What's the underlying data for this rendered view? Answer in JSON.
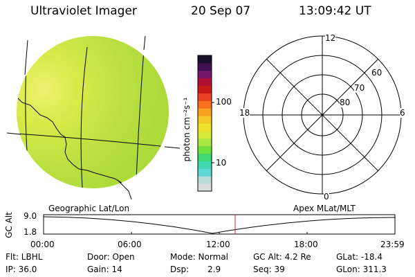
{
  "header": {
    "title": "Ultraviolet Imager",
    "date": "20 Sep 07",
    "time": "13:09:42 UT"
  },
  "colorbar": {
    "unit_label": "photon cm⁻²s⁻¹",
    "tick_high": "100",
    "tick_low": "10",
    "colors": [
      "#d8dcdc",
      "#b8dcdc",
      "#60d8d8",
      "#40d8b0",
      "#40d870",
      "#70e040",
      "#a8e840",
      "#d8e838",
      "#f0e030",
      "#f8c828",
      "#f8a020",
      "#f87020",
      "#e84020",
      "#c81818",
      "#b01030",
      "#781868",
      "#401050",
      "#18102a"
    ]
  },
  "disk": {
    "base_color": "#b8e040",
    "highlight_color": "#e8f060"
  },
  "polar": {
    "label_top": "12",
    "label_bottom": "0",
    "label_left": "18",
    "label_right": "6",
    "lat_labels": [
      "60",
      "70",
      "80"
    ]
  },
  "timeline": {
    "left_title": "Geographic Lat/Lon",
    "right_title": "Apex MLat/MLT",
    "ylabel": "GC Alt",
    "y_top": "9.0",
    "y_bottom": "1.8",
    "x_ticks": [
      "00:00",
      "06:00",
      "12:00",
      "18:00",
      "23:59"
    ],
    "marker_color": "#e02020"
  },
  "info": {
    "filter": "Flt: LBHL",
    "ip": "IP: 36.0",
    "door": "Door: Open",
    "gain": "Gain: 14",
    "mode": "Mode: Normal",
    "dsp_label": "Dsp:",
    "dsp_value": "2.9",
    "gc_alt": "GC Alt: 4.2 Re",
    "seq": "Seq: 39",
    "glat": "GLat: -18.4",
    "glon": "GLon: 311.3"
  }
}
